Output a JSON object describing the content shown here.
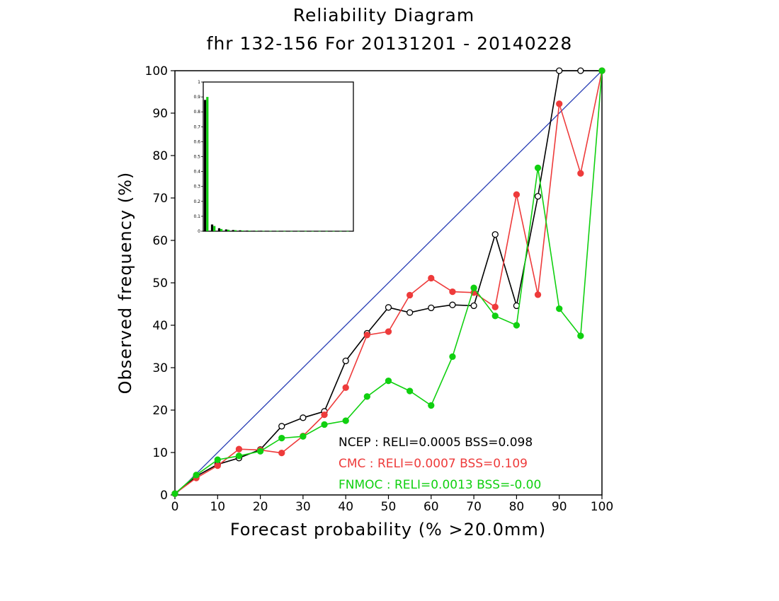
{
  "chart_data": {
    "type": "line",
    "title": "Reliability Diagram",
    "subtitle": "fhr 132-156 For 20131201 - 20140228",
    "xlabel": "Forecast probability (% >20.0mm)",
    "ylabel": "Observed frequency (%)",
    "xlim": [
      0,
      100
    ],
    "ylim": [
      0,
      100
    ],
    "x_ticks": [
      "0",
      "10",
      "20",
      "30",
      "40",
      "50",
      "60",
      "70",
      "80",
      "90",
      "100"
    ],
    "y_ticks": [
      "0",
      "10",
      "20",
      "30",
      "40",
      "50",
      "60",
      "70",
      "80",
      "90",
      "100"
    ],
    "grid": false,
    "colors": {
      "diagonal": "#2a3fb5",
      "NCEP": "#000000",
      "CMC": "#ee3b3b",
      "FNMOC": "#10d010"
    },
    "series": [
      {
        "name": "NCEP",
        "marker": "open-circle",
        "legend": "NCEP    : RELI=0.0005  BSS=0.098",
        "x": [
          0,
          5,
          10,
          15,
          20,
          25,
          30,
          35,
          40,
          45,
          50,
          55,
          60,
          65,
          70,
          75,
          80,
          85,
          90,
          95,
          100
        ],
        "y": [
          0.3,
          4.4,
          7.2,
          8.7,
          10.7,
          16.2,
          18.2,
          19.7,
          31.6,
          38.1,
          44.2,
          43.0,
          44.1,
          44.8,
          44.6,
          61.4,
          44.6,
          70.4,
          100,
          100,
          100
        ]
      },
      {
        "name": "CMC",
        "marker": "filled-circle",
        "legend": "CMC     : RELI=0.0007  BSS=0.109",
        "x": [
          0,
          5,
          10,
          15,
          20,
          25,
          30,
          35,
          40,
          45,
          50,
          55,
          60,
          65,
          70,
          75,
          80,
          85,
          90,
          95,
          100
        ],
        "y": [
          0.3,
          4.0,
          6.9,
          10.8,
          10.6,
          9.9,
          13.9,
          18.9,
          25.3,
          37.7,
          38.5,
          47.1,
          51.1,
          47.9,
          47.7,
          44.3,
          70.8,
          47.2,
          92.2,
          75.8,
          100
        ]
      },
      {
        "name": "FNMOC",
        "marker": "filled-circle",
        "legend": "FNMOC  : RELI=0.0013  BSS=-0.00",
        "x": [
          0,
          5,
          10,
          15,
          20,
          25,
          30,
          35,
          40,
          45,
          50,
          55,
          60,
          65,
          70,
          75,
          80,
          85,
          90,
          95,
          100
        ],
        "y": [
          0.3,
          4.7,
          8.3,
          9.2,
          10.3,
          13.4,
          13.8,
          16.6,
          17.5,
          23.2,
          26.9,
          24.5,
          21.1,
          32.6,
          48.8,
          42.2,
          40.0,
          77.1,
          43.9,
          37.5,
          100
        ]
      }
    ],
    "inset": {
      "type": "bar",
      "description": "forecast frequency histogram",
      "ylim": [
        0,
        1
      ],
      "y_ticks": [
        "0",
        "0.1",
        "0.2",
        "0.3",
        "0.4",
        "0.5",
        "0.6",
        "0.7",
        "0.8",
        "0.9",
        "1"
      ],
      "categories": [
        0,
        5,
        10,
        15,
        20,
        25,
        30,
        35,
        40,
        45,
        50,
        55,
        60,
        65,
        70,
        75,
        80,
        85,
        90,
        95,
        100
      ],
      "series": [
        {
          "name": "NCEP",
          "values": [
            0.88,
            0.045,
            0.02,
            0.012,
            0.008,
            0.006,
            0.004,
            0.003,
            0.003,
            0.002,
            0.002,
            0.002,
            0.001,
            0.001,
            0.001,
            0.001,
            0.001,
            0.001,
            0.001,
            0.001,
            0.001
          ]
        },
        {
          "name": "FNMOC",
          "values": [
            0.9,
            0.035,
            0.015,
            0.01,
            0.007,
            0.005,
            0.004,
            0.003,
            0.002,
            0.002,
            0.002,
            0.001,
            0.001,
            0.001,
            0.001,
            0.001,
            0.001,
            0.001,
            0.001,
            0.001,
            0.001
          ]
        }
      ]
    }
  }
}
